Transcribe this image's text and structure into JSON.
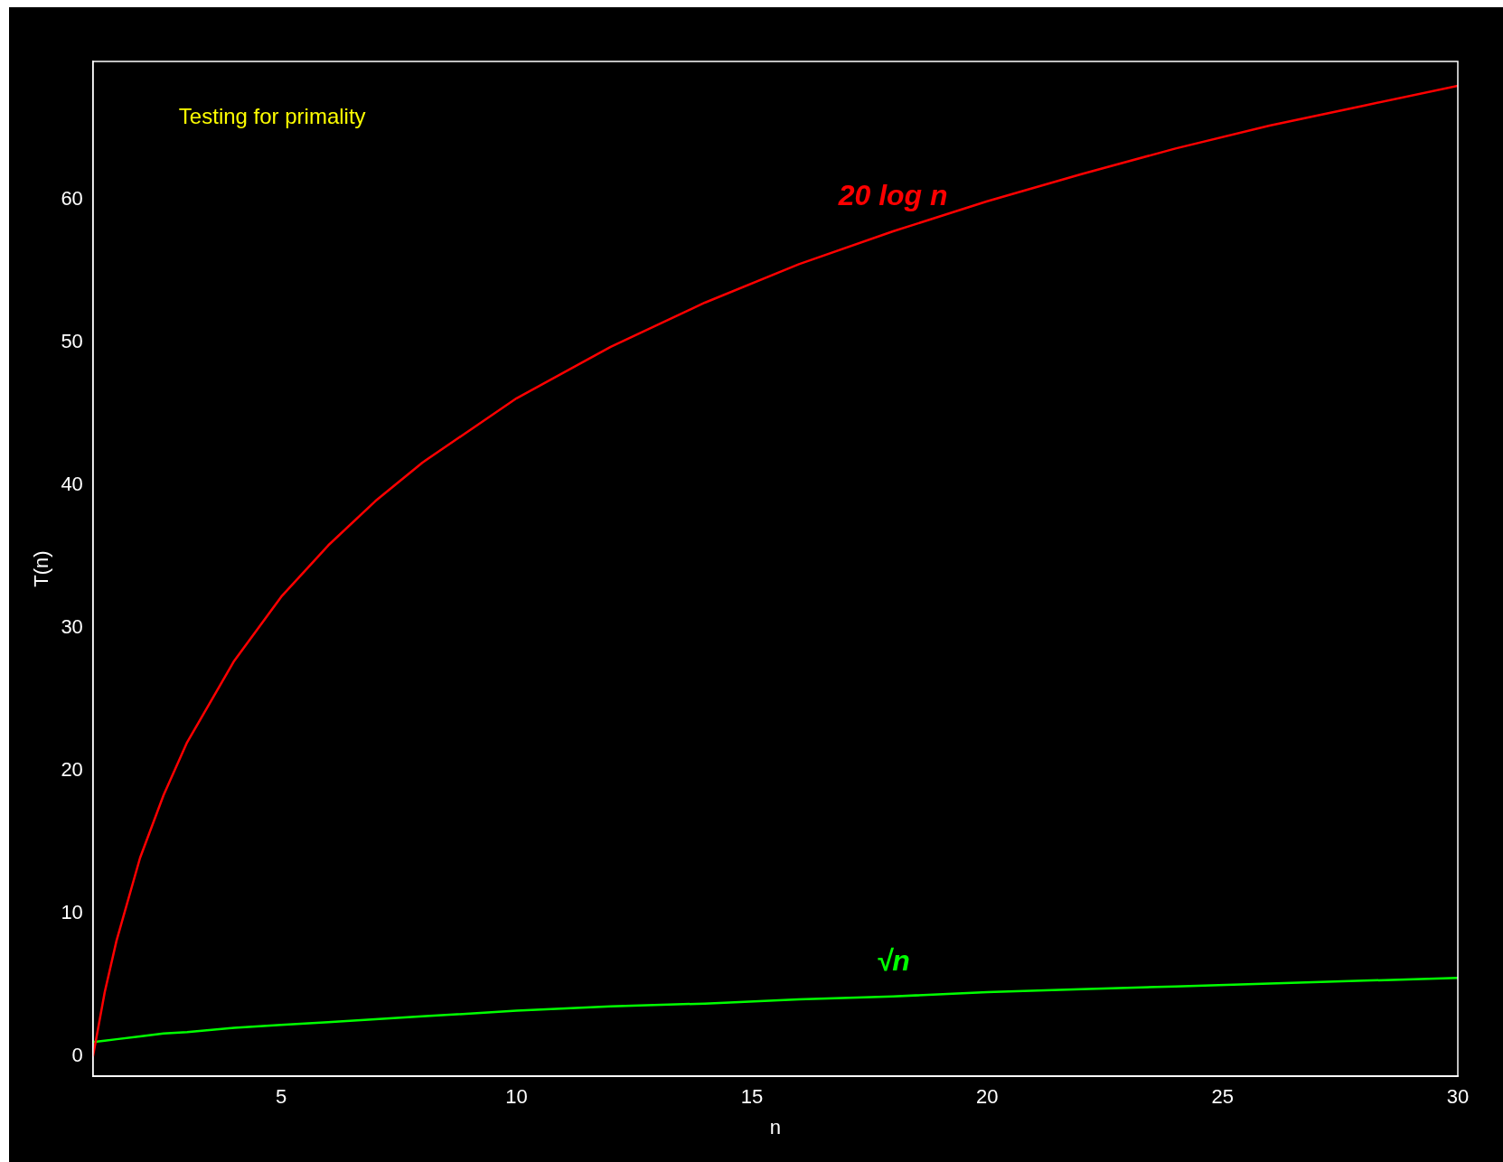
{
  "chart_data": {
    "type": "line",
    "title": "Testing for primality",
    "xlabel": "n",
    "ylabel": "T(n)",
    "xlim": [
      1,
      30
    ],
    "xticks": [
      5,
      10,
      15,
      20,
      25,
      30
    ],
    "ylim": [
      -1.4,
      69.7
    ],
    "yticks": [
      0,
      10,
      20,
      30,
      40,
      50,
      60
    ],
    "grid": false,
    "legend": false,
    "marker": "none",
    "line_style": "solid",
    "x": [
      1,
      1.25,
      1.5,
      2,
      2.5,
      3,
      4,
      5,
      6,
      7,
      8,
      10,
      12,
      14,
      16,
      18,
      20,
      22,
      24,
      26,
      28,
      30
    ],
    "series": [
      {
        "name": "20 log n",
        "color": "#ff0000",
        "values": [
          0,
          4.5,
          8.1,
          13.9,
          18.3,
          22.0,
          27.7,
          32.2,
          35.8,
          38.9,
          41.6,
          46.1,
          49.7,
          52.8,
          55.5,
          57.8,
          59.9,
          61.8,
          63.6,
          65.2,
          66.6,
          68.0
        ]
      },
      {
        "name": "√n",
        "color": "#00ff00",
        "values": [
          1,
          1.1,
          1.2,
          1.4,
          1.6,
          1.7,
          2,
          2.2,
          2.4,
          2.6,
          2.8,
          3.2,
          3.5,
          3.7,
          4,
          4.2,
          4.5,
          4.7,
          4.9,
          5.1,
          5.3,
          5.5
        ]
      }
    ]
  }
}
